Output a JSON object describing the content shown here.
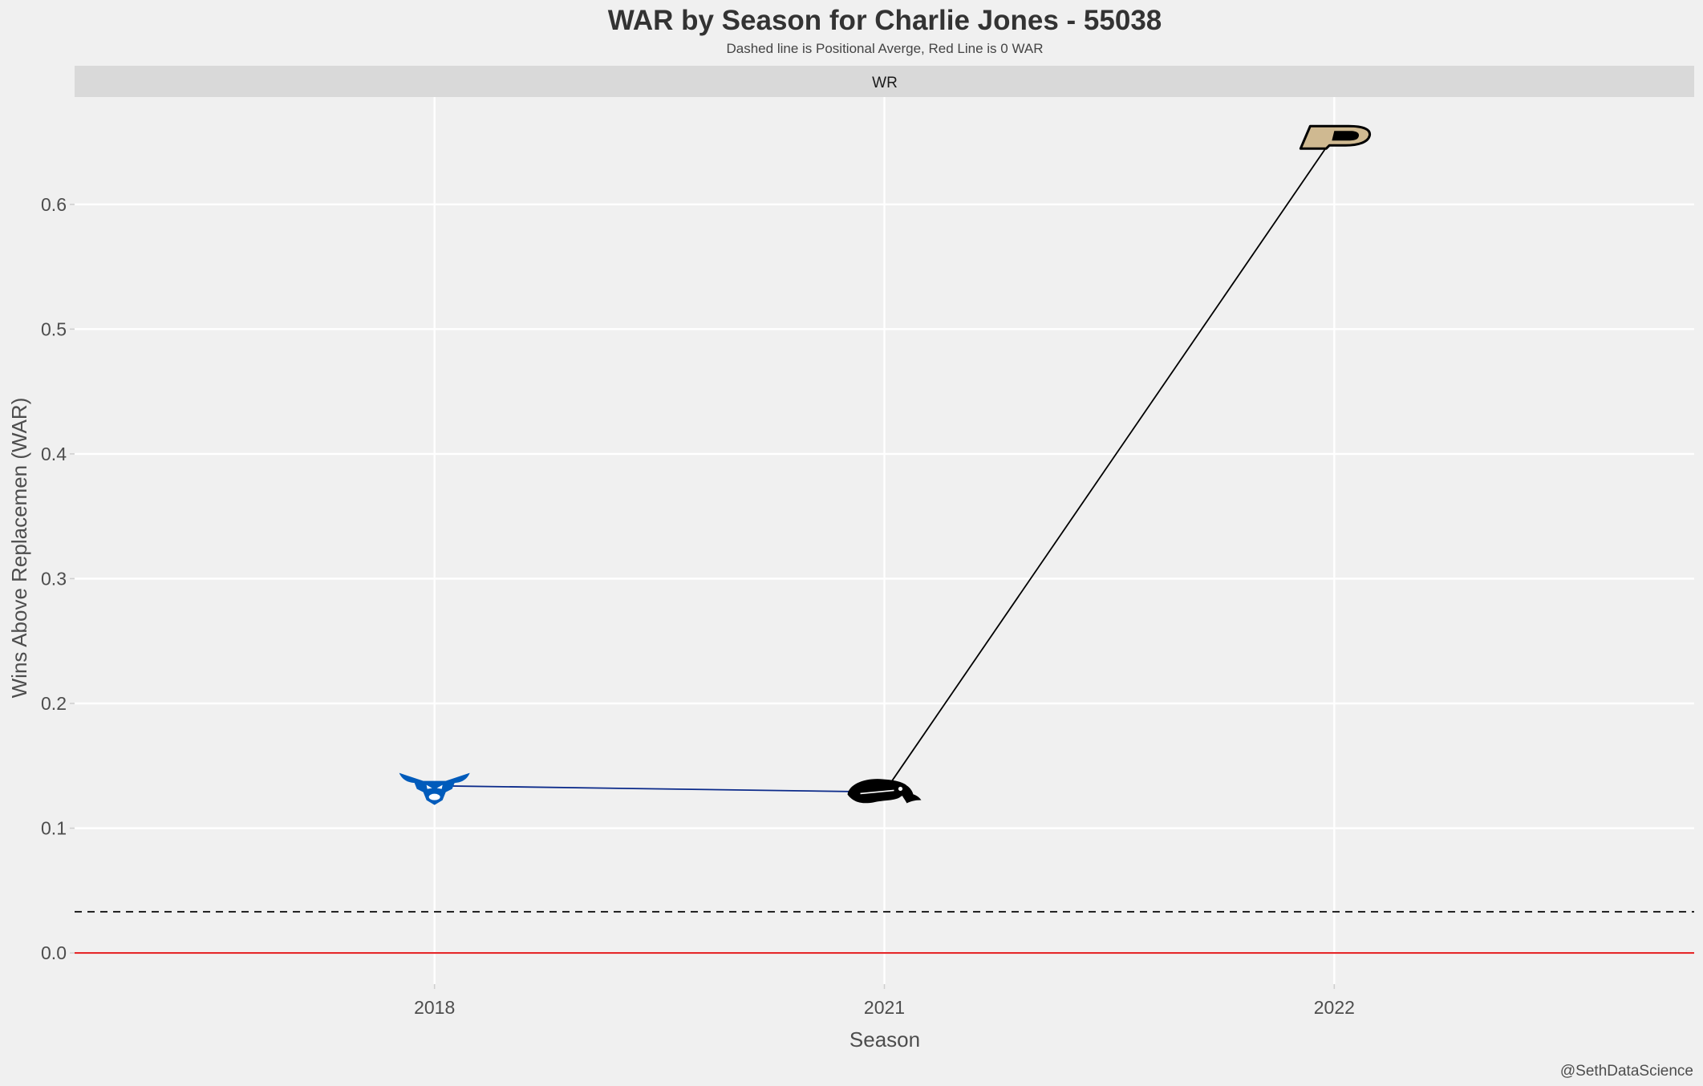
{
  "chart_data": {
    "type": "line",
    "title": "WAR by Season for Charlie Jones - 55038",
    "subtitle": "Dashed line is Positional Averge, Red Line is 0 WAR",
    "facet": "WR",
    "xlabel": "Season",
    "ylabel": "Wins Above Replacemen (WAR)",
    "caption": "@SethDataScience",
    "categories": [
      "2018",
      "2021",
      "2022"
    ],
    "values": [
      0.134,
      0.129,
      0.655
    ],
    "yticks": [
      "0.0",
      "0.1",
      "0.2",
      "0.3",
      "0.4",
      "0.5",
      "0.6"
    ],
    "ylim": [
      -0.025,
      0.686
    ],
    "positional_average": 0.033,
    "zero_line": 0,
    "grid": true,
    "points": [
      {
        "season": "2018",
        "war": 0.134,
        "team_logo": "buffalo-bulls-logo-icon",
        "segment_color": "#0b2a8a"
      },
      {
        "season": "2021",
        "war": 0.129,
        "team_logo": "iowa-hawkeyes-logo-icon",
        "segment_color": "#000000"
      },
      {
        "season": "2022",
        "war": 0.655,
        "team_logo": "purdue-p-logo-icon"
      }
    ],
    "colors": {
      "zero_line": "#e31a1c",
      "average_line": "#000000",
      "grid": "#ffffff",
      "background": "#f0f0f0",
      "strip": "#d9d9d9",
      "buffalo_blue": "#005bbb",
      "purdue_gold": "#cfb991"
    }
  }
}
